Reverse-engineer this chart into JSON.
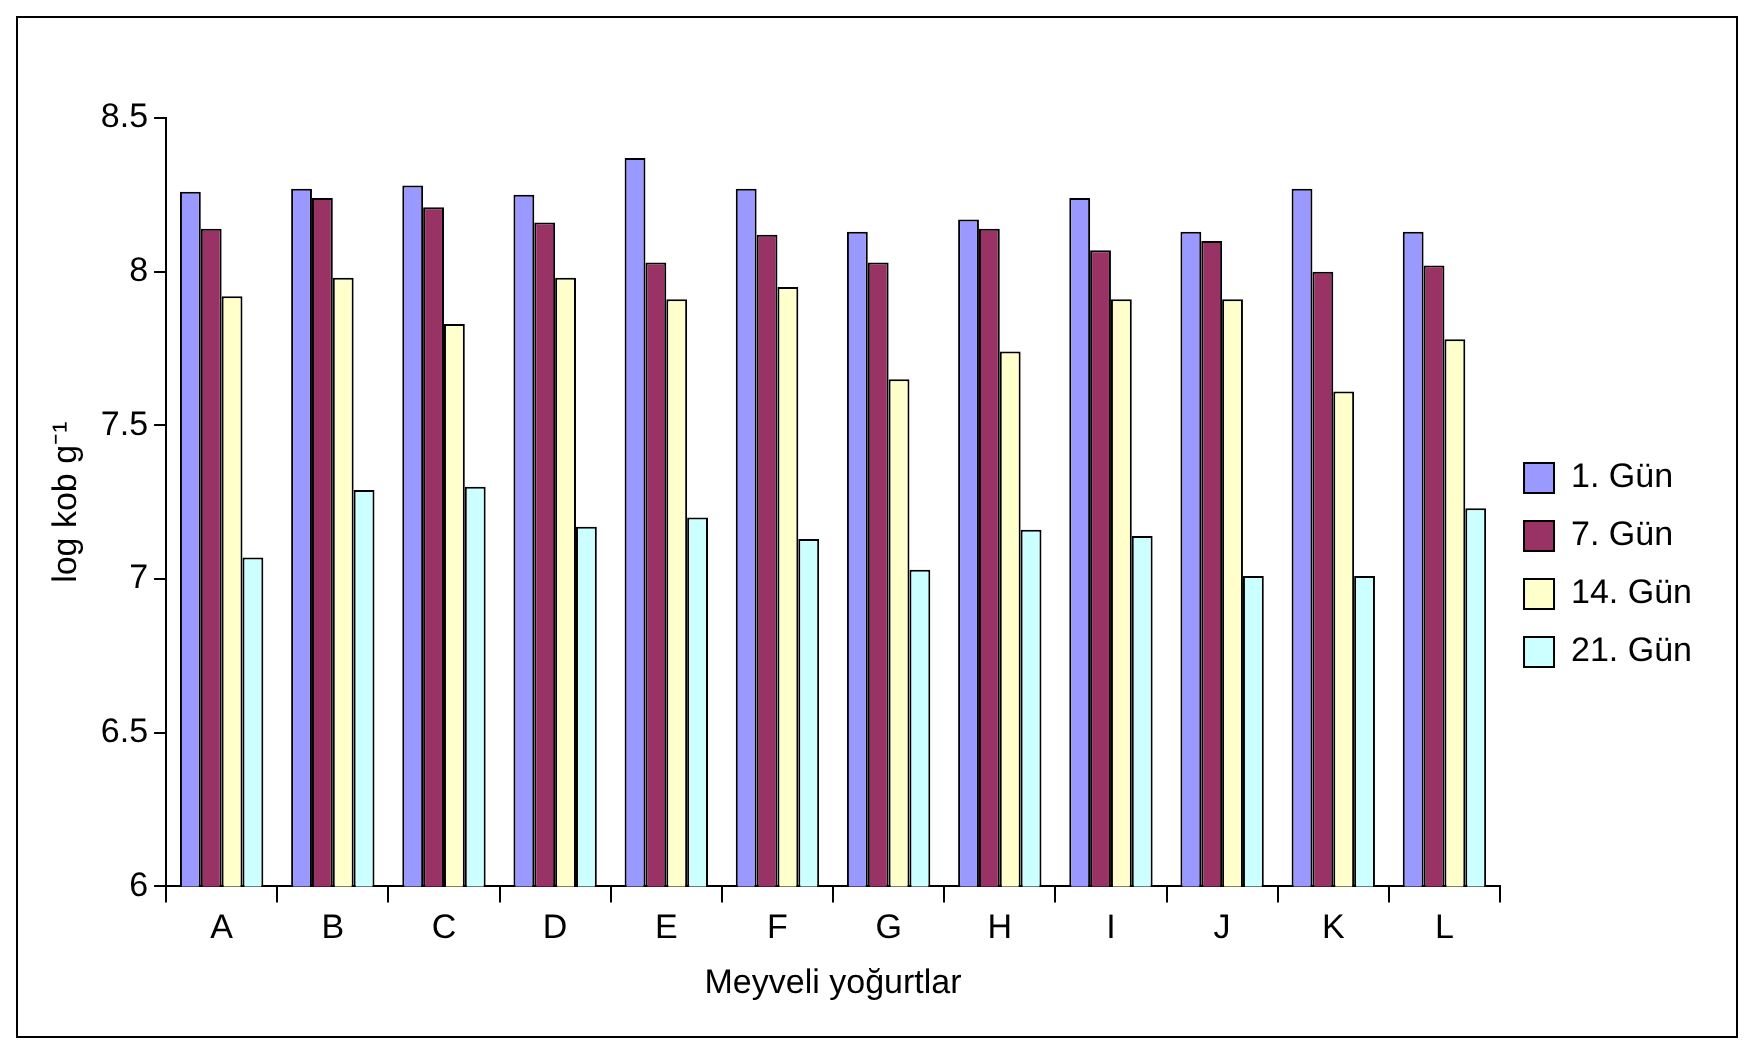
{
  "chart_data": {
    "type": "bar",
    "xlabel": "Meyveli yoğurtlar",
    "ylabel": "log kob g⁻¹",
    "categories": [
      "A",
      "B",
      "C",
      "D",
      "E",
      "F",
      "G",
      "H",
      "I",
      "J",
      "K",
      "L"
    ],
    "series": [
      {
        "name": "1. Gün",
        "color": "#9999ff",
        "values": [
          8.26,
          8.27,
          8.28,
          8.25,
          8.37,
          8.27,
          8.13,
          8.17,
          8.24,
          8.13,
          8.27,
          8.13
        ]
      },
      {
        "name": "7. Gün",
        "color": "#993366",
        "values": [
          8.14,
          8.24,
          8.21,
          8.16,
          8.03,
          8.12,
          8.03,
          8.14,
          8.07,
          8.1,
          8.0,
          8.02
        ]
      },
      {
        "name": "14. Gün",
        "color": "#ffffcc",
        "values": [
          7.92,
          7.98,
          7.83,
          7.98,
          7.91,
          7.95,
          7.65,
          7.74,
          7.91,
          7.91,
          7.61,
          7.78
        ]
      },
      {
        "name": "21. Gün",
        "color": "#ccffff",
        "values": [
          7.07,
          7.29,
          7.3,
          7.17,
          7.2,
          7.13,
          7.03,
          7.16,
          7.14,
          7.01,
          7.01,
          7.23
        ]
      }
    ],
    "ylim": [
      6,
      8.5
    ],
    "yticks": [
      6,
      6.5,
      7,
      7.5,
      8,
      8.5
    ],
    "grid": false,
    "legend": "right"
  }
}
